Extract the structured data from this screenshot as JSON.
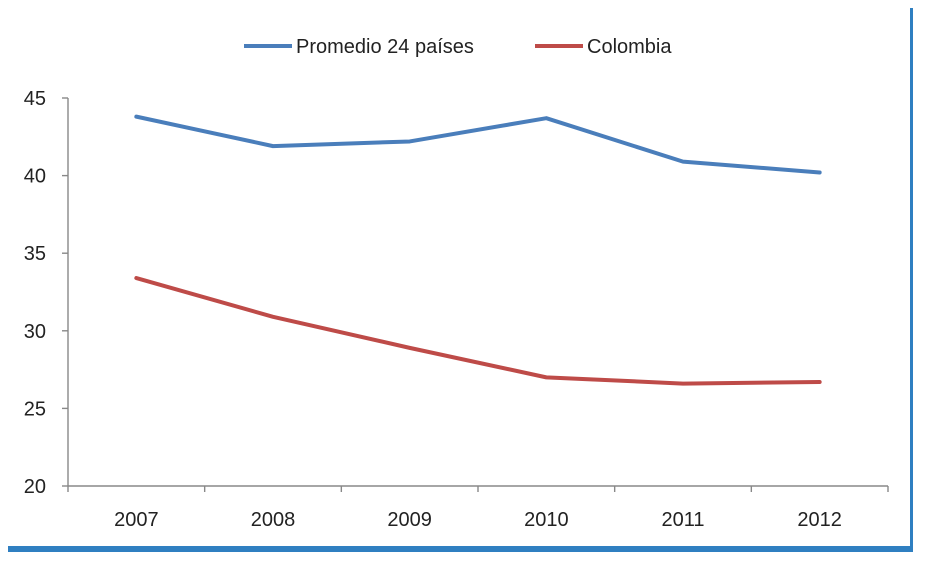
{
  "colors": {
    "series_blue": "#4a7ebb",
    "series_red": "#be4b48",
    "frame_accent": "#2f7fc1",
    "axis": "#888888"
  },
  "chart_data": {
    "type": "line",
    "title": "",
    "xlabel": "",
    "ylabel": "",
    "x": [
      "2007",
      "2008",
      "2009",
      "2010",
      "2011",
      "2012"
    ],
    "ylim": [
      20,
      45
    ],
    "yticks": [
      20,
      25,
      30,
      35,
      40,
      45
    ],
    "grid": false,
    "legend_position": "top",
    "series": [
      {
        "name": "Promedio 24 países",
        "color": "#4a7ebb",
        "values": [
          43.8,
          41.9,
          42.2,
          43.7,
          40.9,
          40.2
        ]
      },
      {
        "name": "Colombia",
        "color": "#be4b48",
        "values": [
          33.4,
          30.9,
          28.9,
          27.0,
          26.6,
          26.7
        ]
      }
    ]
  }
}
